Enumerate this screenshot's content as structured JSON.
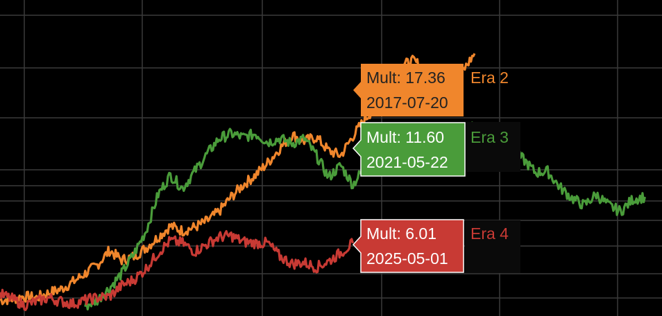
{
  "chart_data": {
    "type": "line",
    "grid": true,
    "background": "#000000",
    "grid_color": "#3a3a3a",
    "series": [
      {
        "name": "Era 2",
        "color": "#f0862c",
        "points": [
          [
            0.0,
            1.3
          ],
          [
            0.5,
            1.4
          ],
          [
            1.0,
            1.6
          ],
          [
            1.5,
            1.5
          ],
          [
            2.0,
            1.9
          ],
          [
            2.5,
            2.2
          ],
          [
            3.0,
            2.8
          ],
          [
            3.5,
            3.5
          ],
          [
            4.0,
            4.2
          ],
          [
            4.5,
            5.4
          ],
          [
            5.0,
            4.6
          ],
          [
            5.5,
            4.9
          ],
          [
            6.0,
            5.6
          ],
          [
            6.5,
            6.5
          ],
          [
            7.0,
            7.4
          ],
          [
            7.5,
            7.0
          ],
          [
            8.0,
            7.3
          ],
          [
            8.5,
            7.8
          ],
          [
            9.0,
            8.6
          ],
          [
            9.5,
            9.8
          ],
          [
            10.0,
            10.8
          ],
          [
            10.5,
            11.6
          ],
          [
            11.0,
            12.6
          ],
          [
            11.5,
            13.8
          ],
          [
            12.0,
            14.9
          ],
          [
            12.5,
            14.4
          ],
          [
            13.0,
            14.7
          ],
          [
            13.5,
            13.6
          ],
          [
            14.0,
            13.2
          ],
          [
            14.5,
            14.8
          ],
          [
            15.0,
            16.2
          ],
          [
            15.5,
            17.4
          ],
          [
            16.0,
            18.9
          ],
          [
            16.5,
            20.6
          ],
          [
            17.0,
            21.0
          ],
          [
            17.5,
            20.2
          ],
          [
            18.0,
            19.9
          ],
          [
            18.5,
            19.3
          ],
          [
            19.0,
            20.1
          ],
          [
            19.5,
            21.6
          ]
        ],
        "tooltip": {
          "value_text": "Mult: 17.36",
          "date_text": "2017-07-20"
        }
      },
      {
        "name": "Era 3",
        "color": "#4a9c3a",
        "points": [
          [
            3.5,
            0.8
          ],
          [
            4.0,
            1.3
          ],
          [
            4.5,
            2.3
          ],
          [
            5.0,
            3.5
          ],
          [
            5.5,
            5.1
          ],
          [
            6.0,
            7.0
          ],
          [
            6.5,
            10.0
          ],
          [
            7.0,
            11.6
          ],
          [
            7.5,
            10.5
          ],
          [
            8.0,
            11.9
          ],
          [
            8.5,
            13.3
          ],
          [
            9.0,
            14.6
          ],
          [
            9.5,
            15.0
          ],
          [
            10.0,
            14.7
          ],
          [
            10.5,
            15.0
          ],
          [
            11.0,
            14.3
          ],
          [
            11.5,
            14.6
          ],
          [
            12.0,
            14.2
          ],
          [
            12.5,
            14.6
          ],
          [
            13.0,
            13.2
          ],
          [
            13.5,
            11.4
          ],
          [
            14.0,
            12.4
          ],
          [
            14.5,
            10.8
          ],
          [
            15.0,
            12.3
          ],
          [
            15.5,
            13.7
          ],
          [
            16.0,
            13.3
          ],
          [
            16.5,
            12.1
          ],
          [
            17.0,
            12.8
          ],
          [
            17.5,
            13.4
          ],
          [
            18.0,
            14.4
          ],
          [
            18.5,
            15.2
          ],
          [
            19.0,
            14.6
          ],
          [
            19.5,
            15.7
          ],
          [
            20.0,
            15.1
          ],
          [
            20.5,
            14.6
          ],
          [
            21.0,
            13.6
          ],
          [
            21.5,
            12.9
          ],
          [
            22.0,
            11.8
          ],
          [
            22.5,
            11.9
          ],
          [
            23.0,
            10.6
          ],
          [
            23.5,
            9.7
          ],
          [
            24.0,
            9.1
          ],
          [
            24.5,
            10.0
          ],
          [
            25.0,
            9.1
          ],
          [
            25.5,
            8.6
          ],
          [
            26.0,
            9.6
          ],
          [
            26.5,
            9.8
          ]
        ],
        "tooltip": {
          "value_text": "Mult: 11.60",
          "date_text": "2021-05-22"
        }
      },
      {
        "name": "Era 4",
        "color": "#c83a34",
        "points": [
          [
            0.0,
            1.8
          ],
          [
            0.5,
            1.4
          ],
          [
            1.0,
            0.9
          ],
          [
            1.5,
            1.2
          ],
          [
            2.0,
            1.5
          ],
          [
            2.5,
            1.2
          ],
          [
            3.0,
            1.0
          ],
          [
            3.5,
            1.3
          ],
          [
            4.0,
            1.5
          ],
          [
            4.5,
            1.6
          ],
          [
            5.0,
            2.5
          ],
          [
            5.5,
            3.0
          ],
          [
            6.0,
            3.9
          ],
          [
            6.5,
            5.2
          ],
          [
            7.0,
            6.2
          ],
          [
            7.5,
            6.0
          ],
          [
            8.0,
            5.3
          ],
          [
            8.5,
            5.9
          ],
          [
            9.0,
            6.5
          ],
          [
            9.5,
            6.6
          ],
          [
            10.0,
            6.1
          ],
          [
            10.5,
            6.0
          ],
          [
            11.0,
            6.0
          ],
          [
            11.5,
            4.9
          ],
          [
            12.0,
            4.3
          ],
          [
            12.5,
            4.4
          ],
          [
            13.0,
            4.0
          ],
          [
            13.5,
            4.5
          ],
          [
            14.0,
            5.2
          ],
          [
            14.5,
            6.0
          ]
        ],
        "tooltip": {
          "value_text": "Mult: 6.01",
          "date_text": "2025-05-01"
        }
      }
    ],
    "xlim": [
      0,
      27.2
    ],
    "ylim": [
      0,
      26
    ]
  }
}
